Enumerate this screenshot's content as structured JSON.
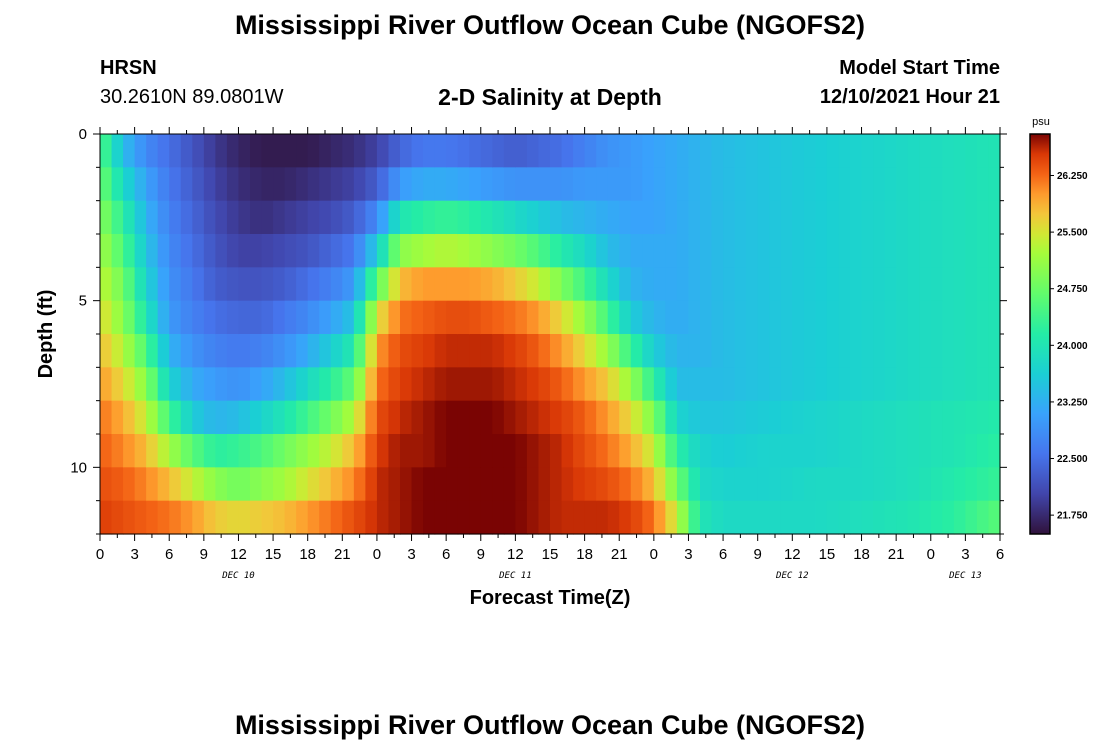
{
  "page": {
    "title": "Mississippi River Outflow Ocean Cube (NGOFS2)",
    "footer_title": "Mississippi River Outflow Ocean Cube (NGOFS2)",
    "station": "HRSN",
    "coords": "30.2610N  89.0801W",
    "model_start_label": "Model Start Time",
    "model_start_value": "12/10/2021 Hour 21"
  },
  "chart_data": {
    "type": "heatmap",
    "title": "2-D Salinity at Depth",
    "xlabel": "Forecast Time(Z)",
    "ylabel": "Depth (ft)",
    "x_range_hours": [
      0,
      78
    ],
    "x_ticks": [
      {
        "h": 0,
        "label": "0"
      },
      {
        "h": 3,
        "label": "3"
      },
      {
        "h": 6,
        "label": "6"
      },
      {
        "h": 9,
        "label": "9"
      },
      {
        "h": 12,
        "label": "12"
      },
      {
        "h": 15,
        "label": "15"
      },
      {
        "h": 18,
        "label": "18"
      },
      {
        "h": 21,
        "label": "21"
      },
      {
        "h": 24,
        "label": "0"
      },
      {
        "h": 27,
        "label": "3"
      },
      {
        "h": 30,
        "label": "6"
      },
      {
        "h": 33,
        "label": "9"
      },
      {
        "h": 36,
        "label": "12"
      },
      {
        "h": 39,
        "label": "15"
      },
      {
        "h": 42,
        "label": "18"
      },
      {
        "h": 45,
        "label": "21"
      },
      {
        "h": 48,
        "label": "0"
      },
      {
        "h": 51,
        "label": "3"
      },
      {
        "h": 54,
        "label": "6"
      },
      {
        "h": 57,
        "label": "9"
      },
      {
        "h": 60,
        "label": "12"
      },
      {
        "h": 63,
        "label": "15"
      },
      {
        "h": 66,
        "label": "18"
      },
      {
        "h": 69,
        "label": "21"
      },
      {
        "h": 72,
        "label": "0"
      },
      {
        "h": 75,
        "label": "3"
      },
      {
        "h": 78,
        "label": "6"
      }
    ],
    "day_labels": [
      {
        "h": 12,
        "label": "DEC 10"
      },
      {
        "h": 36,
        "label": "DEC 11"
      },
      {
        "h": 60,
        "label": "DEC 12"
      },
      {
        "h": 75,
        "label": "DEC 13"
      }
    ],
    "y_range_ft": [
      0,
      12
    ],
    "y_ticks": [
      {
        "v": 0,
        "label": "0"
      },
      {
        "v": 5,
        "label": "5"
      },
      {
        "v": 10,
        "label": "10"
      }
    ],
    "colorbar": {
      "unit": "psu",
      "range": [
        21.5,
        26.8
      ],
      "ticks": [
        {
          "v": 21.75,
          "label": "21.750"
        },
        {
          "v": 22.5,
          "label": "22.500"
        },
        {
          "v": 23.25,
          "label": "23.250"
        },
        {
          "v": 24.0,
          "label": "24.000"
        },
        {
          "v": 24.75,
          "label": "24.750"
        },
        {
          "v": 25.5,
          "label": "25.500"
        },
        {
          "v": 26.25,
          "label": "26.250"
        }
      ]
    },
    "grid": {
      "time_step_hours": 1,
      "depth_levels_ft": [
        0.5,
        1.5,
        2.5,
        3.5,
        4.5,
        5.5,
        6.5,
        7.5,
        8.5,
        9.5,
        10.5,
        11.5
      ],
      "profiles": [
        {
          "h": 0,
          "values": [
            24.6,
            24.8,
            25.0,
            25.2,
            25.4,
            25.6,
            25.8,
            26.0,
            26.2,
            26.3,
            26.4,
            26.5
          ]
        },
        {
          "h": 2,
          "values": [
            23.4,
            23.8,
            24.2,
            24.5,
            24.8,
            25.0,
            25.3,
            25.6,
            25.9,
            26.1,
            26.3,
            26.4
          ]
        },
        {
          "h": 4,
          "values": [
            22.8,
            23.1,
            23.3,
            23.5,
            23.7,
            24.0,
            24.5,
            25.0,
            25.4,
            25.8,
            26.1,
            26.3
          ]
        },
        {
          "h": 6,
          "values": [
            22.5,
            22.6,
            22.7,
            22.8,
            22.9,
            23.0,
            23.3,
            23.7,
            24.4,
            25.2,
            25.8,
            26.2
          ]
        },
        {
          "h": 8,
          "values": [
            22.2,
            22.3,
            22.4,
            22.5,
            22.6,
            22.7,
            22.9,
            23.2,
            23.6,
            24.6,
            25.4,
            26.0
          ]
        },
        {
          "h": 10,
          "values": [
            21.9,
            22.0,
            22.1,
            22.2,
            22.3,
            22.5,
            22.7,
            23.0,
            23.3,
            24.2,
            25.0,
            25.7
          ]
        },
        {
          "h": 12,
          "values": [
            21.7,
            21.8,
            21.9,
            22.0,
            22.2,
            22.4,
            22.6,
            22.9,
            23.4,
            24.3,
            24.8,
            25.6
          ]
        },
        {
          "h": 14,
          "values": [
            21.6,
            21.7,
            21.8,
            22.0,
            22.2,
            22.4,
            22.7,
            23.1,
            23.7,
            24.5,
            25.0,
            25.7
          ]
        },
        {
          "h": 16,
          "values": [
            21.6,
            21.7,
            21.9,
            22.1,
            22.3,
            22.6,
            22.9,
            23.4,
            24.0,
            24.8,
            25.2,
            25.8
          ]
        },
        {
          "h": 18,
          "values": [
            21.6,
            21.8,
            22.0,
            22.2,
            22.5,
            22.8,
            23.2,
            23.8,
            24.4,
            25.1,
            25.5,
            26.0
          ]
        },
        {
          "h": 20,
          "values": [
            21.7,
            21.9,
            22.1,
            22.4,
            22.7,
            23.1,
            23.6,
            24.2,
            24.8,
            25.4,
            25.8,
            26.2
          ]
        },
        {
          "h": 22,
          "values": [
            21.8,
            22.0,
            22.3,
            22.6,
            23.0,
            23.5,
            24.1,
            24.7,
            25.3,
            25.8,
            26.1,
            26.4
          ]
        },
        {
          "h": 24,
          "values": [
            22.0,
            22.3,
            22.8,
            23.6,
            24.6,
            25.5,
            26.0,
            26.2,
            26.4,
            26.5,
            26.6,
            26.6
          ]
        },
        {
          "h": 26,
          "values": [
            22.4,
            23.0,
            24.0,
            25.0,
            25.8,
            26.2,
            26.4,
            26.5,
            26.6,
            26.7,
            26.7,
            26.7
          ]
        },
        {
          "h": 28,
          "values": [
            22.6,
            23.2,
            24.2,
            25.2,
            26.0,
            26.3,
            26.5,
            26.6,
            26.7,
            26.7,
            26.8,
            26.8
          ]
        },
        {
          "h": 30,
          "values": [
            22.6,
            23.2,
            24.3,
            25.3,
            26.0,
            26.4,
            26.6,
            26.7,
            26.8,
            26.8,
            26.8,
            26.8
          ]
        },
        {
          "h": 32,
          "values": [
            22.5,
            23.1,
            24.2,
            25.2,
            26.0,
            26.4,
            26.6,
            26.7,
            26.8,
            26.8,
            26.8,
            26.8
          ]
        },
        {
          "h": 34,
          "values": [
            22.4,
            23.0,
            24.0,
            25.0,
            25.9,
            26.3,
            26.6,
            26.7,
            26.8,
            26.8,
            26.8,
            26.8
          ]
        },
        {
          "h": 36,
          "values": [
            22.3,
            22.9,
            23.8,
            24.8,
            25.7,
            26.2,
            26.5,
            26.6,
            26.7,
            26.8,
            26.8,
            26.8
          ]
        },
        {
          "h": 38,
          "values": [
            22.4,
            22.9,
            23.6,
            24.5,
            25.4,
            26.0,
            26.3,
            26.5,
            26.6,
            26.7,
            26.7,
            26.7
          ]
        },
        {
          "h": 40,
          "values": [
            22.5,
            22.9,
            23.4,
            24.1,
            24.9,
            25.6,
            26.0,
            26.3,
            26.5,
            26.6,
            26.6,
            26.6
          ]
        },
        {
          "h": 42,
          "values": [
            22.7,
            23.0,
            23.3,
            23.8,
            24.4,
            25.1,
            25.6,
            26.0,
            26.3,
            26.4,
            26.5,
            26.6
          ]
        },
        {
          "h": 44,
          "values": [
            22.9,
            23.0,
            23.2,
            23.4,
            23.8,
            24.4,
            25.1,
            25.7,
            26.0,
            26.2,
            26.4,
            26.6
          ]
        },
        {
          "h": 46,
          "values": [
            23.0,
            23.0,
            23.1,
            23.2,
            23.3,
            23.6,
            24.3,
            25.1,
            25.6,
            25.9,
            26.2,
            26.5
          ]
        },
        {
          "h": 48,
          "values": [
            23.1,
            23.1,
            23.1,
            23.2,
            23.2,
            23.3,
            23.6,
            24.2,
            24.9,
            25.4,
            25.8,
            26.2
          ]
        },
        {
          "h": 50,
          "values": [
            23.2,
            23.2,
            23.2,
            23.2,
            23.2,
            23.2,
            23.3,
            23.4,
            23.7,
            24.2,
            24.8,
            25.4
          ]
        },
        {
          "h": 52,
          "values": [
            23.3,
            23.3,
            23.3,
            23.3,
            23.3,
            23.3,
            23.3,
            23.4,
            23.5,
            23.7,
            23.8,
            24.0
          ]
        },
        {
          "h": 54,
          "values": [
            23.4,
            23.4,
            23.4,
            23.4,
            23.4,
            23.4,
            23.4,
            23.4,
            23.5,
            23.6,
            23.7,
            23.8
          ]
        },
        {
          "h": 58,
          "values": [
            23.5,
            23.5,
            23.5,
            23.5,
            23.5,
            23.5,
            23.5,
            23.5,
            23.6,
            23.7,
            23.7,
            23.8
          ]
        },
        {
          "h": 62,
          "values": [
            23.6,
            23.6,
            23.6,
            23.6,
            23.6,
            23.6,
            23.6,
            23.6,
            23.7,
            23.7,
            23.8,
            23.8
          ]
        },
        {
          "h": 66,
          "values": [
            23.7,
            23.7,
            23.7,
            23.7,
            23.7,
            23.7,
            23.7,
            23.7,
            23.8,
            23.8,
            23.8,
            23.9
          ]
        },
        {
          "h": 70,
          "values": [
            23.8,
            23.8,
            23.8,
            23.8,
            23.8,
            23.8,
            23.8,
            23.8,
            23.9,
            23.9,
            23.9,
            24.0
          ]
        },
        {
          "h": 74,
          "values": [
            23.9,
            23.9,
            23.9,
            23.9,
            23.9,
            23.9,
            23.9,
            23.9,
            24.0,
            24.0,
            24.1,
            24.2
          ]
        },
        {
          "h": 78,
          "values": [
            24.0,
            24.0,
            24.0,
            24.0,
            24.0,
            24.0,
            24.0,
            24.0,
            24.1,
            24.2,
            24.3,
            24.6
          ]
        }
      ]
    }
  }
}
